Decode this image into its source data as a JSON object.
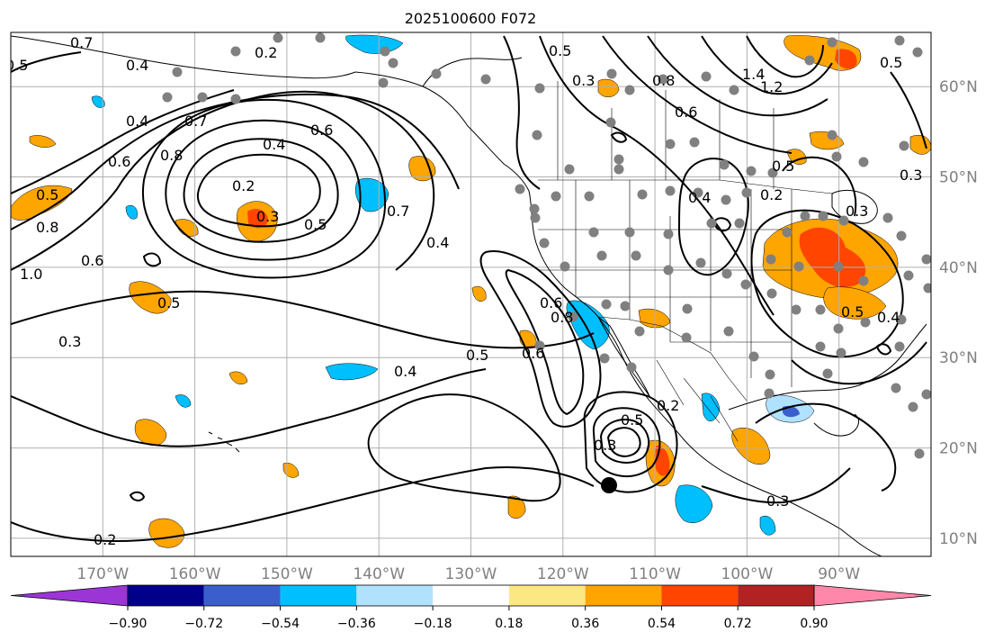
{
  "title": "2025100600 F072",
  "map": {
    "lon_ticks": [
      "170°W",
      "160°W",
      "150°W",
      "140°W",
      "130°W",
      "120°W",
      "110°W",
      "100°W",
      "90°W"
    ],
    "lat_ticks": [
      "60°N",
      "50°N",
      "40°N",
      "30°N",
      "20°N",
      "10°N"
    ],
    "lon_range": [
      -180,
      -80
    ],
    "lat_range": [
      8,
      66
    ],
    "grid": true,
    "contour_labels": [
      "0.7",
      "0.4",
      "0.2",
      "0.5",
      "0.5",
      "0.5",
      "0.4",
      "0.7",
      "0.6",
      "0.8",
      "0.4",
      "0.2",
      "0.6",
      "0.8",
      "1.0",
      "0.6",
      "0.5",
      "0.3",
      "0.3",
      "0.5",
      "0.7",
      "0.4",
      "0.4",
      "0.5",
      "0.6",
      "0.8",
      "0.6",
      "0.5",
      "0.3",
      "0.3",
      "0.2",
      "0.3",
      "0.2",
      "0.5",
      "0.5",
      "0.8",
      "1.4",
      "1.2",
      "0.4",
      "0.2",
      "0.6",
      "0.3",
      "0.3",
      "0.5",
      "0.4"
    ],
    "feature_colors": {
      "contour": "#000000",
      "coast": "#000000",
      "grid": "#b0b0b0",
      "station_dot": "#808080",
      "storm_marker": "#000000"
    }
  },
  "colorbar": {
    "tick_labels": [
      "−0.90",
      "−0.72",
      "−0.54",
      "−0.36",
      "−0.18",
      "0.18",
      "0.36",
      "0.54",
      "0.72",
      "0.90"
    ],
    "bins": [
      {
        "color": "#9b35d6"
      },
      {
        "color": "#00008b"
      },
      {
        "color": "#3a5fcd"
      },
      {
        "color": "#00bfff"
      },
      {
        "color": "#b0e2ff"
      },
      {
        "color": "#ffffff"
      },
      {
        "color": "#fce883"
      },
      {
        "color": "#ffa500"
      },
      {
        "color": "#ff4500"
      },
      {
        "color": "#b22222"
      },
      {
        "color": "#ff88aa"
      }
    ]
  }
}
